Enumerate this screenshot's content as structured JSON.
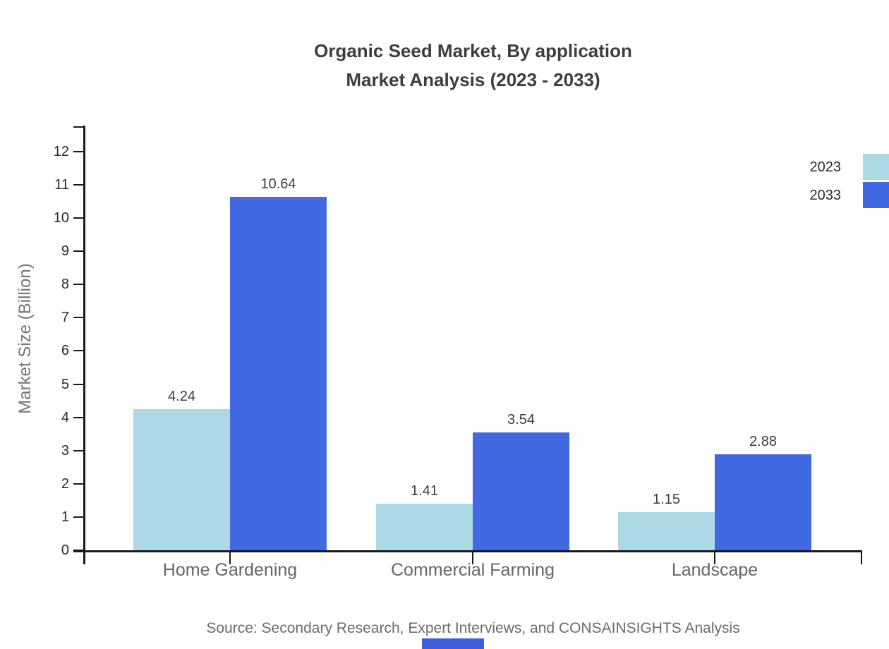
{
  "title": {
    "line1": "Organic Seed Market, By application",
    "line2": "Market Analysis (2023 - 2033)"
  },
  "chart_data": {
    "type": "bar",
    "categories": [
      "Home Gardening",
      "Commercial Farming",
      "Landscape"
    ],
    "series": [
      {
        "name": "2023",
        "color": "#ADD8E6",
        "values": [
          4.24,
          1.41,
          1.15
        ]
      },
      {
        "name": "2033",
        "color": "#4169E1",
        "values": [
          10.64,
          3.54,
          2.88
        ]
      }
    ],
    "value_labels": [
      [
        "4.24",
        "1.41",
        "1.15"
      ],
      [
        "10.64",
        "3.54",
        "2.88"
      ]
    ],
    "title": "Organic Seed Market, By application Market Analysis (2023 - 2033)",
    "xlabel": "",
    "ylabel": "Market Size (Billion)",
    "ylim": [
      0,
      12.75
    ],
    "yticks": [
      "0",
      "1",
      "2",
      "3",
      "4",
      "5",
      "6",
      "7",
      "8",
      "9",
      "10",
      "11",
      "12"
    ],
    "grid": false,
    "legend_position": "top-right"
  },
  "legend": {
    "items": [
      {
        "label": "2023",
        "color": "#ADD8E6"
      },
      {
        "label": "2033",
        "color": "#4169E1"
      }
    ]
  },
  "footer": {
    "source": "Source: Secondary Research, Expert Interviews, and CONSAINSIGHTS Analysis"
  },
  "colors": {
    "axis": "#1a1a1a",
    "title_text": "#3d3d3d",
    "tick_text": "#2b2b2b",
    "category_text": "#666666",
    "axis_title_text": "#757575",
    "source_text": "#6b6b6b",
    "accent_bar": "#3E5CE0",
    "background": "#ffffff"
  }
}
